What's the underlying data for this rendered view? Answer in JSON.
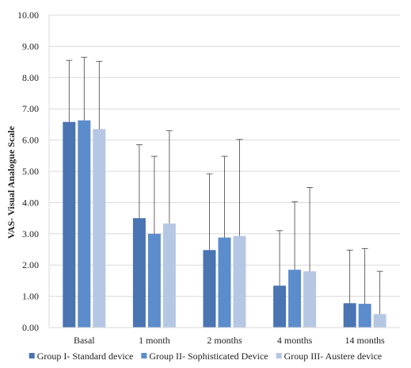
{
  "chart_data": {
    "type": "bar",
    "title": "",
    "xlabel": "",
    "ylabel": "VAS- Visual Analogue Scale",
    "ylim": [
      0,
      10
    ],
    "yticks": [
      "0.00",
      "1.00",
      "2.00",
      "3.00",
      "4.00",
      "5.00",
      "6.00",
      "7.00",
      "8.00",
      "9.00",
      "10.00"
    ],
    "grid": true,
    "legend_position": "bottom",
    "error_bars": true,
    "categories": [
      "Basal",
      "1 month",
      "2 months",
      "4 months",
      "14 months"
    ],
    "series": [
      {
        "name": "Group I- Standard device",
        "color": "#4a74b2",
        "values": [
          6.58,
          3.5,
          2.48,
          1.34,
          0.78
        ],
        "error_upper": [
          8.55,
          5.85,
          4.92,
          3.1,
          2.48
        ]
      },
      {
        "name": "Group II- Sophisticated Device",
        "color": "#5b8ccc",
        "values": [
          6.63,
          3.0,
          2.88,
          1.85,
          0.76
        ],
        "error_upper": [
          8.65,
          5.48,
          5.48,
          4.03,
          2.53
        ]
      },
      {
        "name": "Group III- Austere device",
        "color": "#b6c7e4",
        "values": [
          6.35,
          3.33,
          2.93,
          1.8,
          0.43
        ],
        "error_upper": [
          8.52,
          6.3,
          6.02,
          4.48,
          1.8
        ]
      }
    ]
  }
}
